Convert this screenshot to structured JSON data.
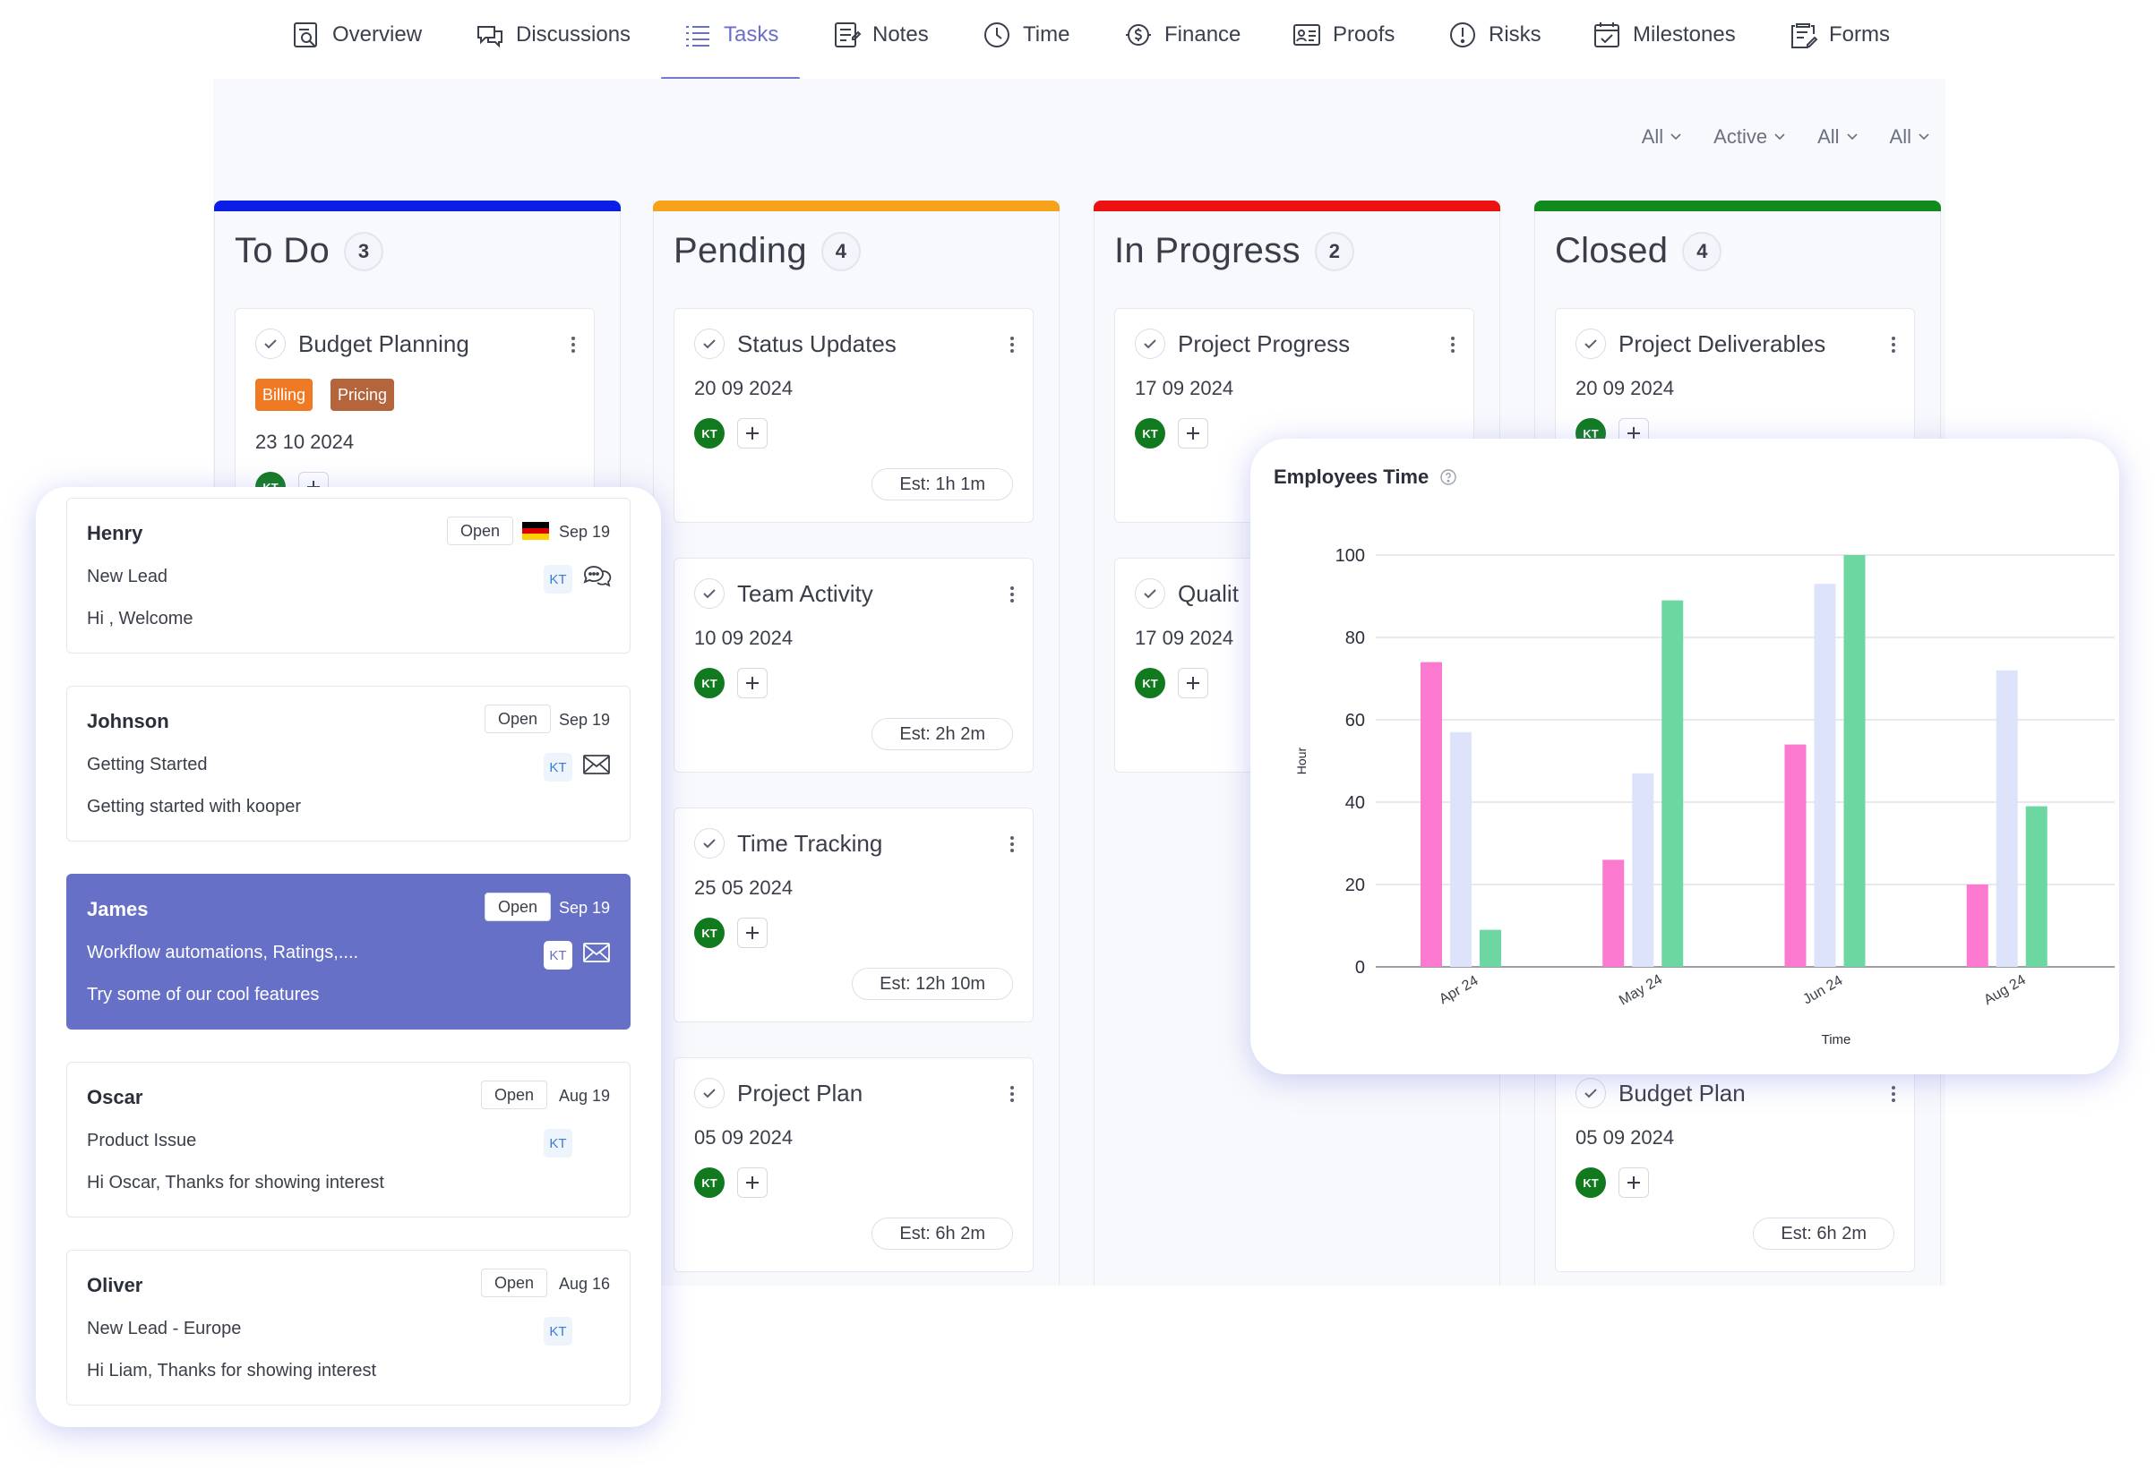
{
  "nav": {
    "items": [
      {
        "label": "Overview",
        "icon": "overview-icon"
      },
      {
        "label": "Discussions",
        "icon": "discussions-icon"
      },
      {
        "label": "Tasks",
        "icon": "tasks-icon",
        "active": true
      },
      {
        "label": "Notes",
        "icon": "notes-icon"
      },
      {
        "label": "Time",
        "icon": "clock-icon"
      },
      {
        "label": "Finance",
        "icon": "finance-icon"
      },
      {
        "label": "Proofs",
        "icon": "proofs-icon"
      },
      {
        "label": "Risks",
        "icon": "risk-icon"
      },
      {
        "label": "Milestones",
        "icon": "calendar-icon"
      },
      {
        "label": "Forms",
        "icon": "forms-icon"
      }
    ],
    "accent": "#6a6fc8"
  },
  "filters": [
    "All",
    "Active",
    "All",
    "All"
  ],
  "columns": [
    {
      "title": "To Do",
      "count": "3",
      "color": "#0a1ee6",
      "cards": [
        {
          "title": "Budget Planning",
          "date": "23 10 2024",
          "tags": [
            {
              "label": "Billing",
              "color": "#ef7a23"
            },
            {
              "label": "Pricing",
              "color": "#b4653c"
            }
          ],
          "assignee": "KT",
          "est": ""
        }
      ]
    },
    {
      "title": "Pending",
      "count": "4",
      "color": "#f7a21b",
      "cards": [
        {
          "title": "Status Updates",
          "date": "20 09 2024",
          "assignee": "KT",
          "est": "Est: 1h 1m"
        },
        {
          "title": "Team Activity",
          "date": "10 09 2024",
          "assignee": "KT",
          "est": "Est: 2h 2m"
        },
        {
          "title": "Time Tracking",
          "date": "25 05 2024",
          "assignee": "KT",
          "est": "Est: 12h 10m"
        },
        {
          "title": "Project Plan",
          "date": "05 09 2024",
          "assignee": "KT",
          "est": "Est: 6h 2m"
        }
      ]
    },
    {
      "title": "In Progress",
      "count": "2",
      "color": "#ee1111",
      "cards": [
        {
          "title": "Project Progress",
          "date": "17 09 2024",
          "assignee": "KT",
          "est": ""
        },
        {
          "title": "Qualit",
          "date": "17 09 2024",
          "assignee": "KT",
          "est": ""
        }
      ]
    },
    {
      "title": "Closed",
      "count": "4",
      "color": "#108a1c",
      "cards": [
        {
          "title": "Project Deliverables",
          "date": "20 09 2024",
          "assignee": "KT",
          "est": ""
        },
        {
          "title": "Budget Plan",
          "date": "05 09 2024",
          "assignee": "KT",
          "est": "Est: 6h 2m"
        }
      ]
    }
  ],
  "messages": [
    {
      "name": "Henry",
      "status": "Open",
      "date": "Sep 19",
      "subject": "New Lead",
      "preview": "Hi , Welcome",
      "badge": "KT",
      "icon": "chat-icon",
      "flag": "germany-flag-icon",
      "selected": false
    },
    {
      "name": "Johnson",
      "status": "Open",
      "date": "Sep 19",
      "subject": "Getting Started",
      "preview": "Getting started with kooper",
      "badge": "KT",
      "icon": "mail-icon",
      "selected": false
    },
    {
      "name": "James",
      "status": "Open",
      "date": "Sep 19",
      "subject": "Workflow automations, Ratings,....",
      "preview": "Try some of our cool features",
      "badge": "KT",
      "icon": "mail-icon",
      "selected": true
    },
    {
      "name": "Oscar",
      "status": "Open",
      "date": "Aug 19",
      "subject": "Product Issue",
      "preview": "Hi Oscar, Thanks for showing interest",
      "badge": "KT",
      "selected": false
    },
    {
      "name": "Oliver",
      "status": "Open",
      "date": "Aug 16",
      "subject": "New Lead - Europe",
      "preview": "Hi Liam, Thanks for showing interest",
      "badge": "KT",
      "selected": false
    }
  ],
  "chart_panel": {
    "title": "Employees Time",
    "help_icon": "help-circle-icon"
  },
  "chart_data": {
    "type": "bar",
    "title": "Employees Time",
    "xlabel": "Time",
    "ylabel": "Hour",
    "categories": [
      "Apr 24",
      "May 24",
      "Jun 24",
      "Aug 24"
    ],
    "ylim": [
      0,
      100
    ],
    "yticks": [
      0,
      20,
      40,
      60,
      80,
      100
    ],
    "grid": true,
    "series": [
      {
        "color": "#fb7ad0",
        "values": [
          74,
          26,
          54,
          20
        ]
      },
      {
        "color": "#dde3fb",
        "values": [
          57,
          47,
          93,
          72
        ]
      },
      {
        "color": "#6dd7a2",
        "values": [
          9,
          89,
          100,
          39
        ]
      }
    ]
  }
}
